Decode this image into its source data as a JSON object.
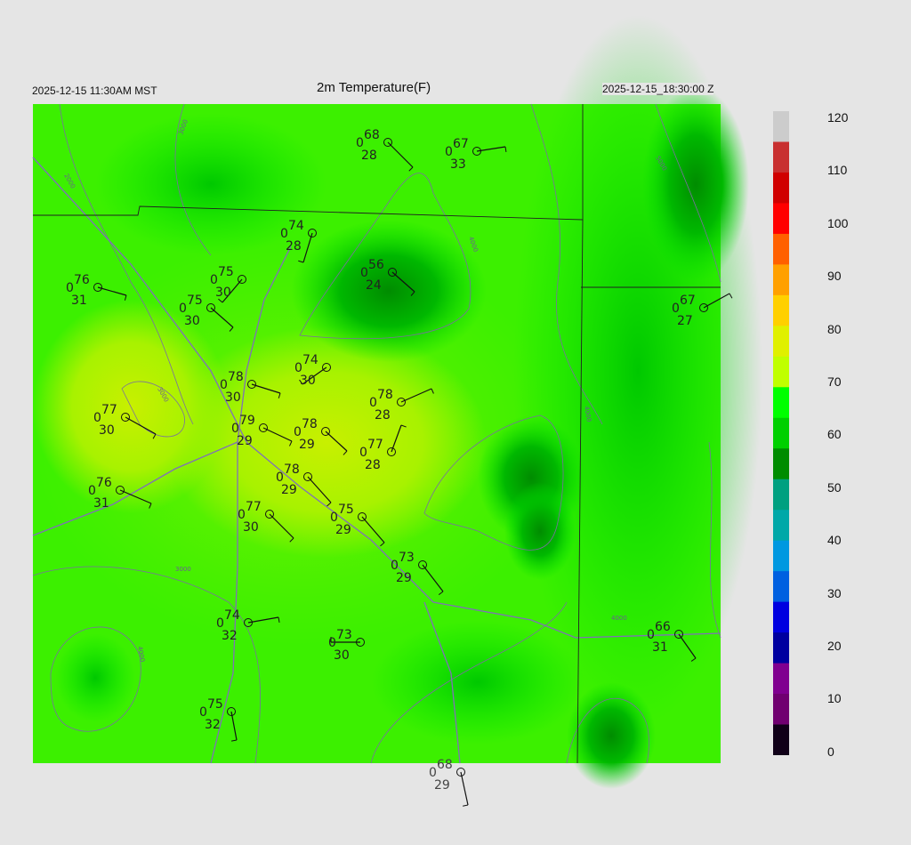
{
  "header": {
    "title": "2m Temperature(F)",
    "local_time": "2025-12-15 11:30AM MST",
    "utc_time": "2025-12-15_18:30:00 Z"
  },
  "colorbar": {
    "labels": [
      "120",
      "110",
      "100",
      "90",
      "80",
      "70",
      "60",
      "50",
      "40",
      "30",
      "20",
      "10",
      "0"
    ],
    "stops": [
      "#cccccc",
      "#c83030",
      "#d00000",
      "#ff0000",
      "#ff6000",
      "#ffa000",
      "#ffd000",
      "#e0f000",
      "#c0ff00",
      "#00ff00",
      "#00d000",
      "#008c00",
      "#00a080",
      "#00a8a8",
      "#0098e0",
      "#0060e0",
      "#0000e0",
      "#0000a0",
      "#800090",
      "#700070",
      "#100018"
    ]
  },
  "contour_labels": [
    "2000",
    "3000",
    "4000",
    "5000"
  ],
  "stations": [
    {
      "t": "68",
      "v": "0",
      "d": "28"
    },
    {
      "t": "67",
      "v": "0",
      "d": "33"
    },
    {
      "t": "74",
      "v": "0",
      "d": "28"
    },
    {
      "t": "76",
      "v": "0",
      "d": "31"
    },
    {
      "t": "75",
      "v": "0",
      "d": "30"
    },
    {
      "t": "75",
      "v": "0",
      "d": "30"
    },
    {
      "t": "56",
      "v": "0",
      "d": "24"
    },
    {
      "t": "67",
      "v": "0",
      "d": "27"
    },
    {
      "t": "74",
      "v": "0",
      "d": "30"
    },
    {
      "t": "78",
      "v": "0",
      "d": "30"
    },
    {
      "t": "78",
      "v": "0",
      "d": "28"
    },
    {
      "t": "77",
      "v": "0",
      "d": "30"
    },
    {
      "t": "79",
      "v": "0",
      "d": "29"
    },
    {
      "t": "78",
      "v": "0",
      "d": "29"
    },
    {
      "t": "77",
      "v": "0",
      "d": "28"
    },
    {
      "t": "78",
      "v": "0",
      "d": "29"
    },
    {
      "t": "76",
      "v": "0",
      "d": "31"
    },
    {
      "t": "77",
      "v": "0",
      "d": "30"
    },
    {
      "t": "75",
      "v": "0",
      "d": "29"
    },
    {
      "t": "73",
      "v": "0",
      "d": "29"
    },
    {
      "t": "74",
      "v": "0",
      "d": "32"
    },
    {
      "t": "73",
      "v": "0",
      "d": "30"
    },
    {
      "t": "66",
      "v": "0",
      "d": "31"
    },
    {
      "t": "75",
      "v": "0",
      "d": "32"
    },
    {
      "t": "68",
      "v": "0",
      "d": "29"
    }
  ]
}
